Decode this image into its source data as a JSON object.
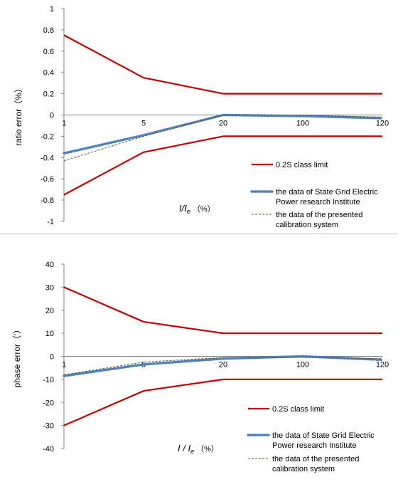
{
  "chart_data": [
    {
      "type": "line",
      "ylabel": "ratio error（%）",
      "xlabel": "I/I_e（%）",
      "xlabel_main": "I/I",
      "xlabel_sub": "e",
      "xlabel_unit": "（%）",
      "categories": [
        "1",
        "5",
        "20",
        "100",
        "120"
      ],
      "ylim": [
        -1,
        1
      ],
      "yticks": [
        "1",
        "0.8",
        "0.6",
        "0.4",
        "0.2",
        "0",
        "-0.2",
        "-0.4",
        "-0.6",
        "-0.8",
        "-1"
      ],
      "series": [
        {
          "name": "0.2S class limit",
          "style": "solid",
          "color": "#c00000",
          "values": [
            0.75,
            0.35,
            0.2,
            0.2,
            0.2
          ]
        },
        {
          "name": "0.2S class limit",
          "style": "solid",
          "color": "#c00000",
          "values": [
            -0.75,
            -0.35,
            -0.2,
            -0.2,
            -0.2
          ],
          "hide_legend": true
        },
        {
          "name": "the data of State Grid Electric Power research Institute",
          "style": "dotted",
          "color": "#4f81bd",
          "values": [
            -0.36,
            -0.19,
            0.0,
            -0.01,
            -0.03
          ]
        },
        {
          "name": "the data of the presented calibration system",
          "style": "dashed",
          "color": "#5a5a2a",
          "values": [
            -0.43,
            -0.2,
            0.0,
            0.0,
            -0.02
          ]
        }
      ],
      "legend": [
        {
          "style": "solid",
          "color": "#c00000",
          "lines": [
            "0.2S class limit"
          ]
        },
        {
          "style": "dotted",
          "color": "#4f81bd",
          "lines": [
            "the data of State Grid Electric",
            "Power research Institute"
          ]
        },
        {
          "style": "dashed",
          "color": "#5a5a2a",
          "lines": [
            "the data of the presented",
            "calibration system"
          ]
        }
      ]
    },
    {
      "type": "line",
      "ylabel": "phase error（'）",
      "xlabel": "I/I_e（%）",
      "xlabel_main": "I / I",
      "xlabel_sub": "e",
      "xlabel_unit": "（%）",
      "categories": [
        "1",
        "5",
        "20",
        "100",
        "120"
      ],
      "ylim": [
        -40,
        40
      ],
      "yticks": [
        "40",
        "30",
        "20",
        "10",
        "0",
        "-10",
        "-20",
        "-30",
        "-40"
      ],
      "series": [
        {
          "name": "0.2S class limit",
          "style": "solid",
          "color": "#c00000",
          "values": [
            30,
            15,
            10,
            10,
            10
          ]
        },
        {
          "name": "0.2S class limit",
          "style": "solid",
          "color": "#c00000",
          "values": [
            -30,
            -15,
            -10,
            -10,
            -10
          ],
          "hide_legend": true
        },
        {
          "name": "the data of State Grid Electric Power research Institute",
          "style": "dotted",
          "color": "#4f81bd",
          "values": [
            -8.5,
            -3.5,
            -1.0,
            0.0,
            -1.5
          ]
        },
        {
          "name": "the data of the presented calibration system",
          "style": "dashed",
          "color": "#5a5a2a",
          "values": [
            -8.0,
            -2.5,
            -0.5,
            -0.5,
            -1.0
          ]
        }
      ],
      "legend": [
        {
          "style": "solid",
          "color": "#c00000",
          "lines": [
            "0.2S class limit"
          ]
        },
        {
          "style": "dotted",
          "color": "#4f81bd",
          "lines": [
            "the data of State Grid Electric",
            "Power research Institute"
          ]
        },
        {
          "style": "dashed",
          "color": "#5a5a2a",
          "lines": [
            "the data of the presented",
            "calibration system"
          ]
        }
      ]
    }
  ]
}
